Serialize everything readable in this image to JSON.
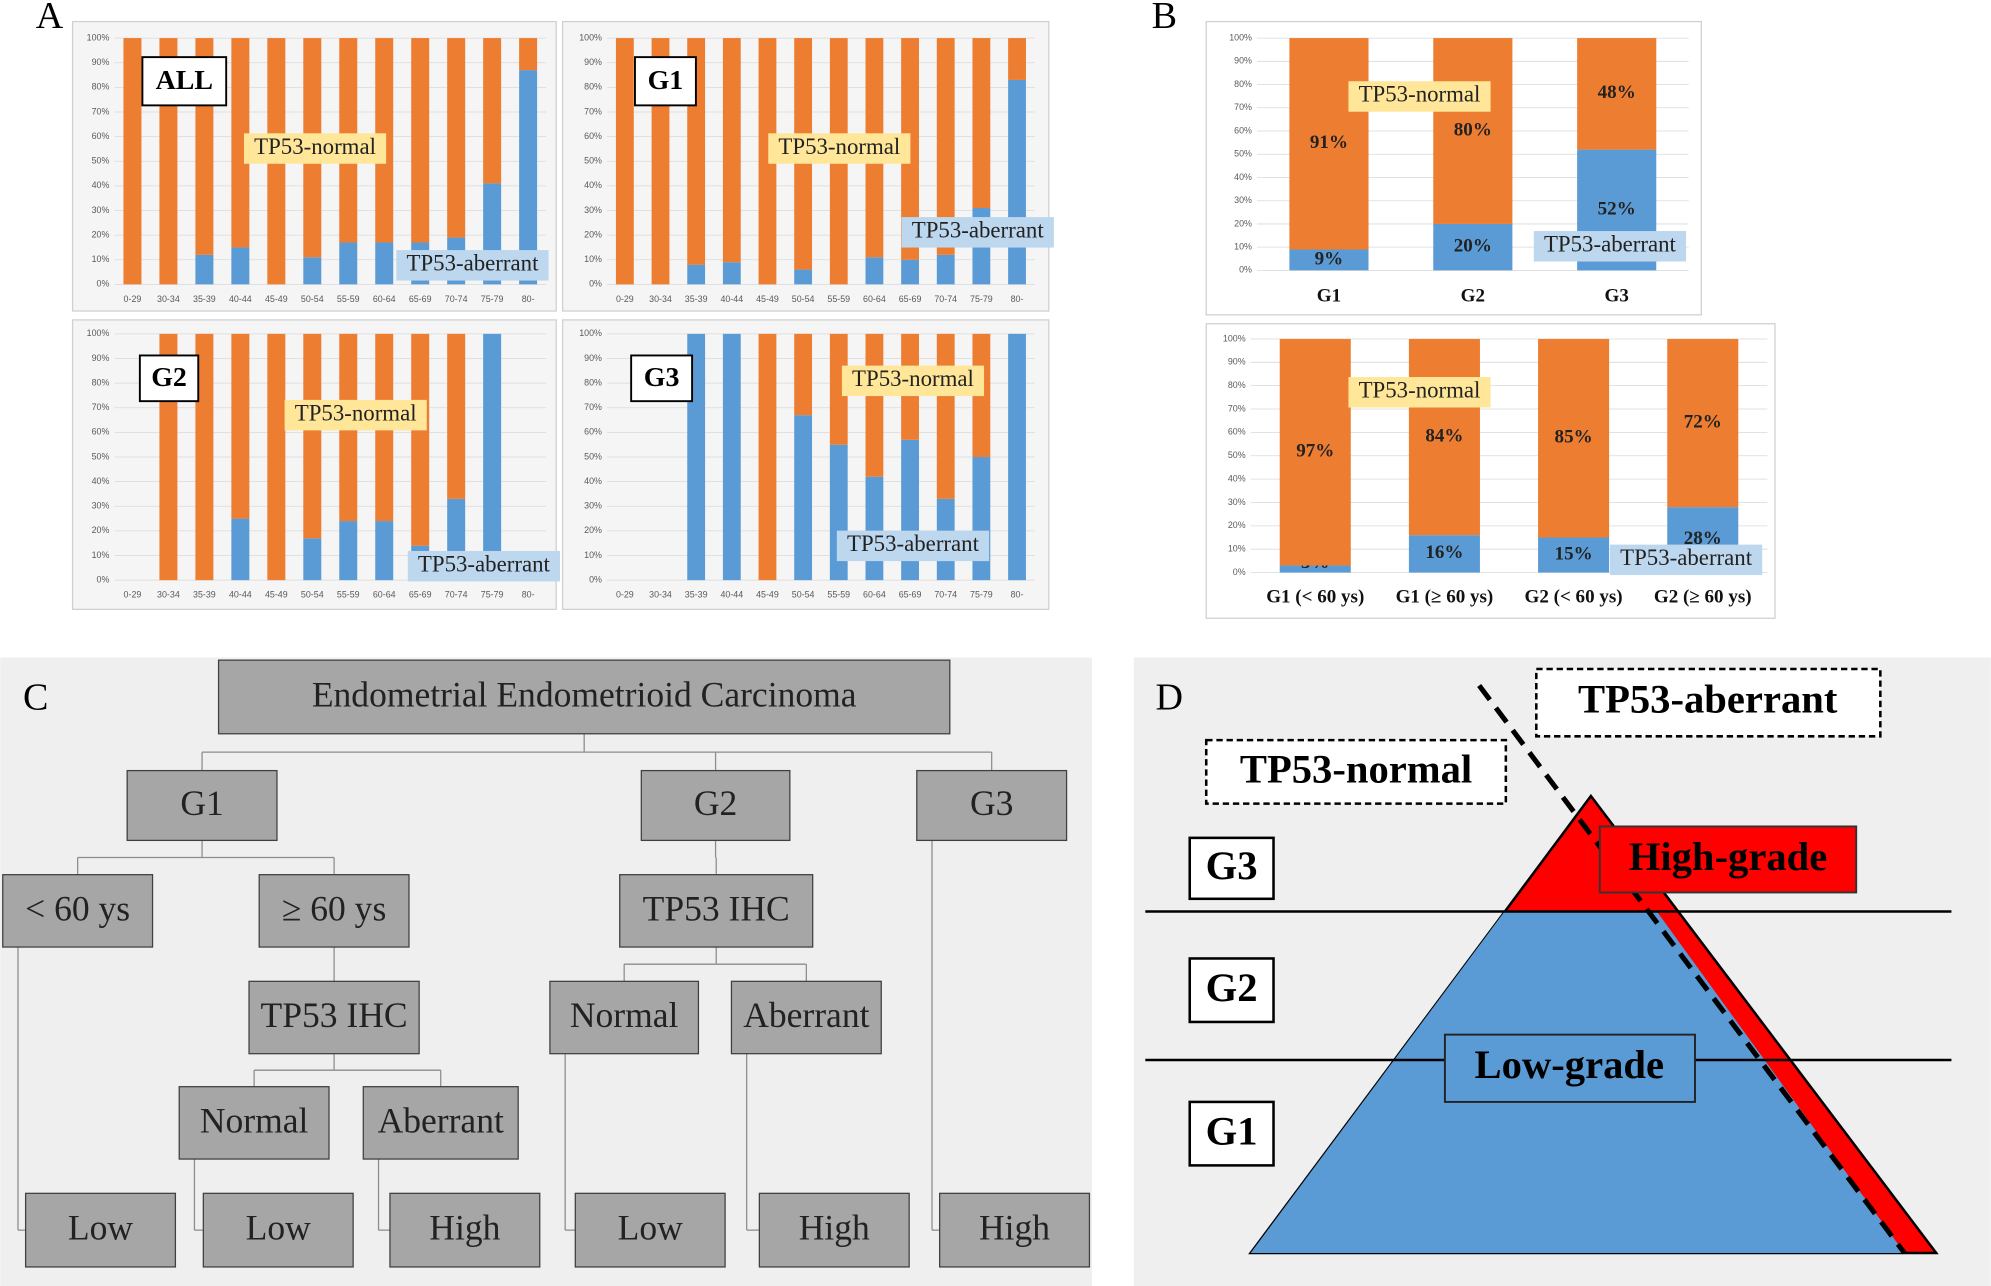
{
  "panels": [
    "A",
    "B",
    "C",
    "D"
  ],
  "chart_data": [
    {
      "type": "bar",
      "stacked": true,
      "panel_label": "ALL",
      "categories": [
        "0-29",
        "30-34",
        "35-39",
        "40-44",
        "45-49",
        "50-54",
        "55-59",
        "60-64",
        "65-69",
        "70-74",
        "75-79",
        "80-"
      ],
      "series": [
        {
          "name": "TP53-aberrant",
          "color": "#5b9bd5",
          "values": [
            0,
            0,
            12,
            15,
            0,
            11,
            17,
            17,
            17,
            19,
            41,
            87
          ]
        },
        {
          "name": "TP53-normal",
          "color": "#ed7d31",
          "values": [
            100,
            100,
            88,
            85,
            100,
            89,
            83,
            83,
            83,
            81,
            59,
            13
          ]
        }
      ],
      "ylim": [
        0,
        100
      ],
      "yticks": [
        {
          "value": 0,
          "label": "0%"
        },
        {
          "value": 10,
          "label": "10%"
        },
        {
          "value": 20,
          "label": "20%"
        },
        {
          "value": 30,
          "label": "30%"
        },
        {
          "value": 40,
          "label": "40%"
        },
        {
          "value": 50,
          "label": "50%"
        },
        {
          "value": 60,
          "label": "60%"
        },
        {
          "value": 70,
          "label": "70%"
        },
        {
          "value": 80,
          "label": "80%"
        },
        {
          "value": 90,
          "label": "90%"
        },
        {
          "value": 100,
          "label": "100%"
        }
      ],
      "grid": true
    },
    {
      "type": "bar",
      "stacked": true,
      "panel_label": "G1",
      "categories": [
        "0-29",
        "30-34",
        "35-39",
        "40-44",
        "45-49",
        "50-54",
        "55-59",
        "60-64",
        "65-69",
        "70-74",
        "75-79",
        "80-"
      ],
      "series": [
        {
          "name": "TP53-aberrant",
          "color": "#5b9bd5",
          "values": [
            0,
            0,
            8,
            9,
            0,
            6,
            0,
            11,
            10,
            12,
            31,
            83
          ]
        },
        {
          "name": "TP53-normal",
          "color": "#ed7d31",
          "values": [
            100,
            100,
            92,
            91,
            100,
            94,
            100,
            89,
            90,
            88,
            69,
            17
          ]
        }
      ],
      "ylim": [
        0,
        100
      ],
      "yticks": [
        {
          "value": 0,
          "label": "0%"
        },
        {
          "value": 10,
          "label": "10%"
        },
        {
          "value": 20,
          "label": "20%"
        },
        {
          "value": 30,
          "label": "30%"
        },
        {
          "value": 40,
          "label": "40%"
        },
        {
          "value": 50,
          "label": "50%"
        },
        {
          "value": 60,
          "label": "60%"
        },
        {
          "value": 70,
          "label": "70%"
        },
        {
          "value": 80,
          "label": "80%"
        },
        {
          "value": 90,
          "label": "90%"
        },
        {
          "value": 100,
          "label": "100%"
        }
      ],
      "grid": true
    },
    {
      "type": "bar",
      "stacked": true,
      "panel_label": "G2",
      "categories": [
        "0-29",
        "30-34",
        "35-39",
        "40-44",
        "45-49",
        "50-54",
        "55-59",
        "60-64",
        "65-69",
        "70-74",
        "75-79",
        "80-"
      ],
      "series": [
        {
          "name": "TP53-aberrant",
          "color": "#5b9bd5",
          "values": [
            null,
            0,
            0,
            25,
            0,
            17,
            24,
            24,
            14,
            33,
            100,
            null
          ]
        },
        {
          "name": "TP53-normal",
          "color": "#ed7d31",
          "values": [
            null,
            100,
            100,
            75,
            100,
            83,
            76,
            76,
            86,
            67,
            0,
            null
          ]
        }
      ],
      "ylim": [
        0,
        100
      ],
      "yticks": [
        {
          "value": 0,
          "label": "0%"
        },
        {
          "value": 10,
          "label": "10%"
        },
        {
          "value": 20,
          "label": "20%"
        },
        {
          "value": 30,
          "label": "30%"
        },
        {
          "value": 40,
          "label": "40%"
        },
        {
          "value": 50,
          "label": "50%"
        },
        {
          "value": 60,
          "label": "60%"
        },
        {
          "value": 70,
          "label": "70%"
        },
        {
          "value": 80,
          "label": "80%"
        },
        {
          "value": 90,
          "label": "90%"
        },
        {
          "value": 100,
          "label": "100%"
        }
      ],
      "grid": true
    },
    {
      "type": "bar",
      "stacked": true,
      "panel_label": "G3",
      "categories": [
        "0-29",
        "30-34",
        "35-39",
        "40-44",
        "45-49",
        "50-54",
        "55-59",
        "60-64",
        "65-69",
        "70-74",
        "75-79",
        "80-"
      ],
      "series": [
        {
          "name": "TP53-aberrant",
          "color": "#5b9bd5",
          "values": [
            null,
            null,
            100,
            100,
            0,
            67,
            55,
            42,
            57,
            33,
            50,
            100
          ]
        },
        {
          "name": "TP53-normal",
          "color": "#ed7d31",
          "values": [
            null,
            null,
            0,
            0,
            100,
            33,
            45,
            58,
            43,
            67,
            50,
            0
          ]
        }
      ],
      "ylim": [
        0,
        100
      ],
      "yticks": [
        {
          "value": 0,
          "label": "0%"
        },
        {
          "value": 10,
          "label": "10%"
        },
        {
          "value": 20,
          "label": "20%"
        },
        {
          "value": 30,
          "label": "30%"
        },
        {
          "value": 40,
          "label": "40%"
        },
        {
          "value": 50,
          "label": "50%"
        },
        {
          "value": 60,
          "label": "60%"
        },
        {
          "value": 70,
          "label": "70%"
        },
        {
          "value": 80,
          "label": "80%"
        },
        {
          "value": 90,
          "label": "90%"
        },
        {
          "value": 100,
          "label": "100%"
        }
      ],
      "grid": true
    },
    {
      "type": "bar",
      "stacked": true,
      "categories": [
        "G1",
        "G2",
        "G3"
      ],
      "series": [
        {
          "name": "TP53-aberrant",
          "color": "#5b9bd5",
          "values": [
            9,
            20,
            52
          ],
          "value_labels": [
            "9%",
            "20%",
            "52%"
          ]
        },
        {
          "name": "TP53-normal",
          "color": "#ed7d31",
          "values": [
            91,
            80,
            48
          ],
          "value_labels": [
            "91%",
            "80%",
            "48%"
          ]
        }
      ],
      "ylim": [
        0,
        100
      ],
      "yticks": [
        {
          "value": 0,
          "label": "0%"
        },
        {
          "value": 10,
          "label": "10%"
        },
        {
          "value": 20,
          "label": "20%"
        },
        {
          "value": 30,
          "label": "30%"
        },
        {
          "value": 40,
          "label": "40%"
        },
        {
          "value": 50,
          "label": "50%"
        },
        {
          "value": 60,
          "label": "60%"
        },
        {
          "value": 70,
          "label": "70%"
        },
        {
          "value": 80,
          "label": "80%"
        },
        {
          "value": 90,
          "label": "90%"
        },
        {
          "value": 100,
          "label": "100%"
        }
      ],
      "grid": true
    },
    {
      "type": "bar",
      "stacked": true,
      "categories": [
        "G1 (< 60 ys)",
        "G1 (≥ 60 ys)",
        "G2 (< 60 ys)",
        "G2 (≥ 60 ys)"
      ],
      "series": [
        {
          "name": "TP53-aberrant",
          "color": "#5b9bd5",
          "values": [
            3,
            16,
            15,
            28
          ],
          "value_labels": [
            "3%",
            "16%",
            "15%",
            "28%"
          ]
        },
        {
          "name": "TP53-normal",
          "color": "#ed7d31",
          "values": [
            97,
            84,
            85,
            72
          ],
          "value_labels": [
            "97%",
            "84%",
            "85%",
            "72%"
          ]
        }
      ],
      "ylim": [
        0,
        100
      ],
      "yticks": [
        {
          "value": 0,
          "label": "0%"
        },
        {
          "value": 10,
          "label": "10%"
        },
        {
          "value": 20,
          "label": "20%"
        },
        {
          "value": 30,
          "label": "30%"
        },
        {
          "value": 40,
          "label": "40%"
        },
        {
          "value": 50,
          "label": "50%"
        },
        {
          "value": 60,
          "label": "60%"
        },
        {
          "value": 70,
          "label": "70%"
        },
        {
          "value": 80,
          "label": "80%"
        },
        {
          "value": 90,
          "label": "90%"
        },
        {
          "value": 100,
          "label": "100%"
        }
      ],
      "grid": true
    }
  ],
  "tree": {
    "nodes": [
      "Endometrial Endometrioid Carcinoma",
      "G1",
      "G2",
      "G3",
      "< 60 ys",
      "≥ 60 ys",
      "TP53 IHC",
      "TP53 IHC",
      "Normal",
      "Aberrant",
      "Normal",
      "Aberrant",
      "Low",
      "Low",
      "High",
      "Low",
      "High",
      "High"
    ]
  },
  "model": {
    "grades": [
      "G3",
      "G2",
      "G1"
    ],
    "labels": [
      "TP53-normal",
      "TP53-aberrant",
      "High-grade",
      "Low-grade"
    ]
  }
}
